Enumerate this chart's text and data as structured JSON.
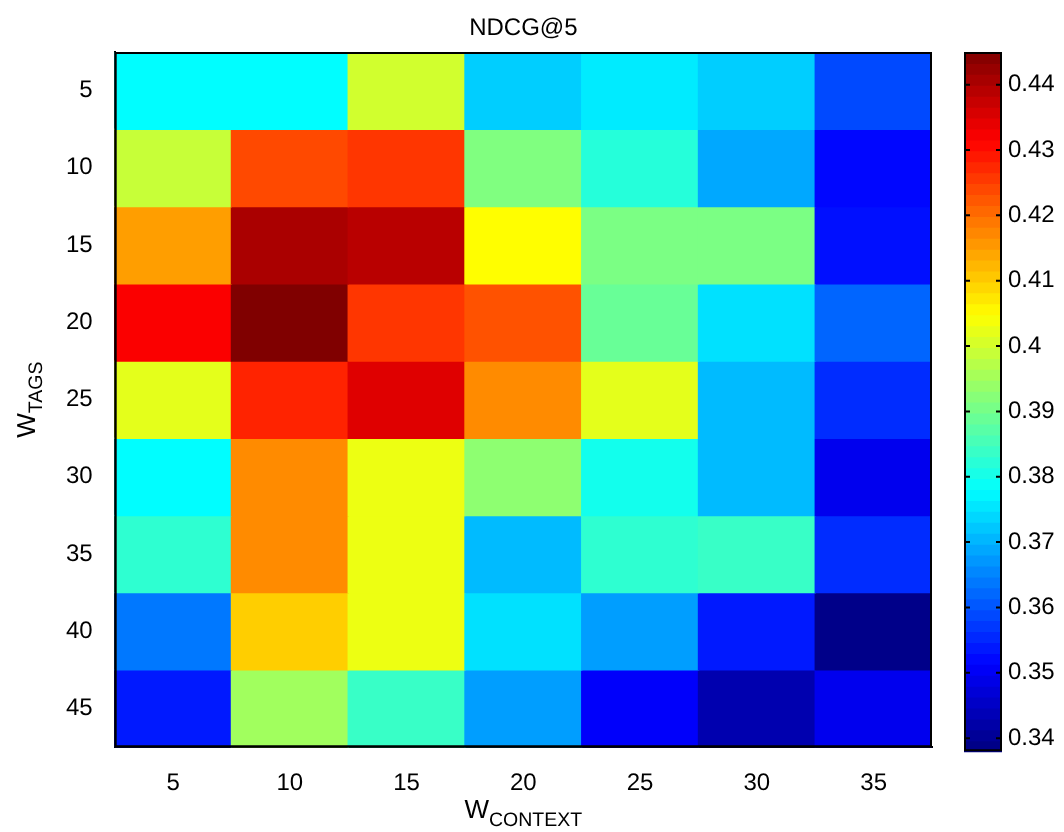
{
  "chart_data": {
    "type": "heatmap",
    "title": "NDCG@5",
    "xlabel": "W$_{CONTEXT}$",
    "ylabel": "W$_{TAGS}$",
    "categories": [
      "5",
      "10",
      "15",
      "20",
      "25",
      "30",
      "35"
    ],
    "y_categories": [
      "5",
      "10",
      "15",
      "20",
      "25",
      "30",
      "35",
      "40",
      "45"
    ],
    "cells": [
      [
        0.378,
        0.378,
        0.4,
        0.373,
        0.376,
        0.373,
        0.359
      ],
      [
        0.399,
        0.424,
        0.426,
        0.3915,
        0.382,
        0.369,
        0.352
      ],
      [
        0.415,
        0.4405,
        0.439,
        0.405,
        0.391,
        0.391,
        0.353
      ],
      [
        0.432,
        0.445,
        0.426,
        0.423,
        0.389,
        0.375,
        0.362
      ],
      [
        0.402,
        0.428,
        0.435,
        0.417,
        0.402,
        0.371,
        0.356
      ],
      [
        0.378,
        0.417,
        0.403,
        0.393,
        0.38,
        0.371,
        0.3496
      ],
      [
        0.383,
        0.417,
        0.403,
        0.371,
        0.383,
        0.384,
        0.356
      ],
      [
        0.364,
        0.41,
        0.403,
        0.375,
        0.368,
        0.354,
        0.339
      ],
      [
        0.354,
        0.395,
        0.384,
        0.368,
        0.351,
        0.343,
        0.3496
      ]
    ],
    "clim": [
      0.338,
      0.445
    ],
    "cticks": [
      0.34,
      0.35,
      0.36,
      0.37,
      0.38,
      0.39,
      0.4,
      0.41,
      0.42,
      0.43,
      0.44
    ]
  }
}
